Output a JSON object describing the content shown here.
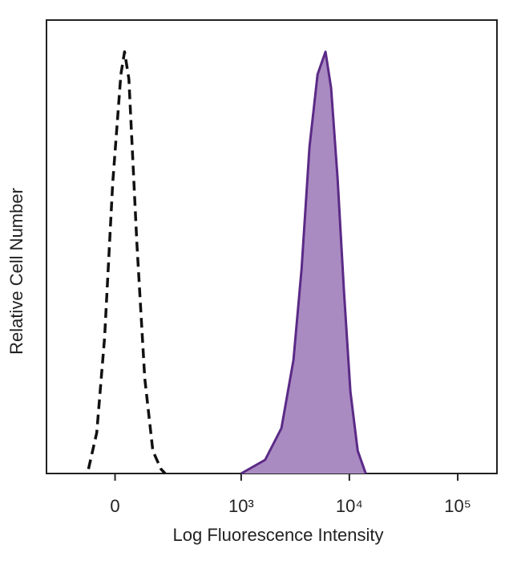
{
  "chart_data": {
    "type": "area",
    "x_label": "Log Fluorescence Intensity",
    "y_label": "Relative Cell Number",
    "xscale": "biexponential",
    "xlim": [
      -280,
      230000
    ],
    "ylim": [
      0,
      100
    ],
    "xticks": [
      0,
      {
        "value": 1000,
        "label": "10³"
      },
      {
        "value": 10000,
        "label": "10⁴"
      },
      {
        "value": 100000,
        "label": "10⁵"
      }
    ],
    "series": [
      {
        "color": "#111111",
        "style": "dashed",
        "x": [
          -82,
          -55,
          -31,
          -7,
          17,
          28,
          41,
          66,
          93,
          123,
          157,
          176
        ],
        "values": [
          1,
          9,
          30,
          64,
          88,
          93,
          87,
          51,
          21,
          5,
          1,
          0
        ]
      },
      {
        "color": "#5b2a86",
        "fill": "#a98bc2",
        "style": "solid",
        "x": [
          1000,
          1670,
          2360,
          3050,
          3620,
          4290,
          5090,
          6030,
          6790,
          7790,
          8930,
          10240,
          11950,
          14160
        ],
        "values": [
          0,
          3,
          10,
          25,
          45,
          72,
          88,
          93,
          85,
          65,
          40,
          18,
          5,
          0
        ]
      }
    ]
  }
}
